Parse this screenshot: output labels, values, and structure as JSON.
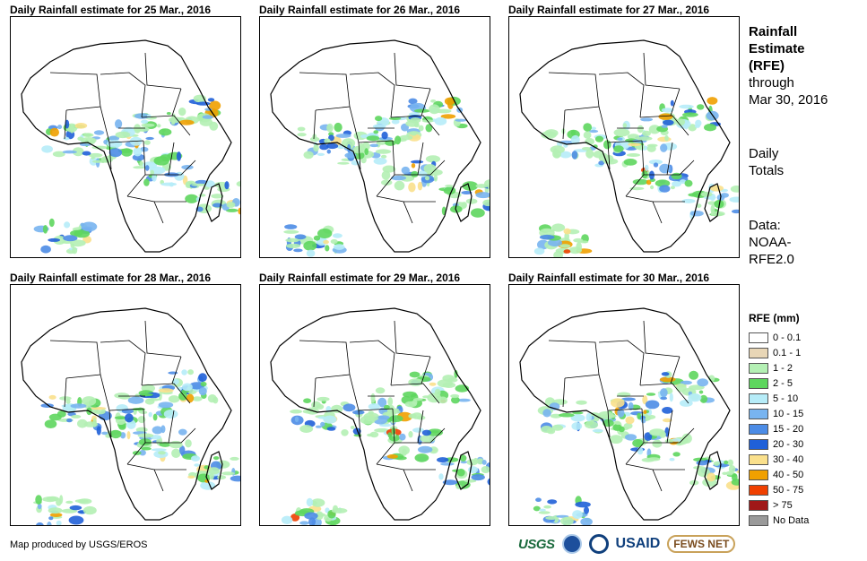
{
  "panels": [
    {
      "title": "Daily Rainfall estimate for 25 Mar., 2016"
    },
    {
      "title": "Daily Rainfall estimate for 26 Mar., 2016"
    },
    {
      "title": "Daily Rainfall estimate for 27 Mar., 2016"
    },
    {
      "title": "Daily Rainfall estimate for 28 Mar., 2016"
    },
    {
      "title": "Daily Rainfall estimate for 29 Mar., 2016"
    },
    {
      "title": "Daily Rainfall estimate for 30 Mar., 2016"
    }
  ],
  "side": {
    "title_line1": "Rainfall",
    "title_line2": "Estimate",
    "title_line3": "(RFE)",
    "through": "through",
    "date": "Mar 30, 2016",
    "daily1": "Daily",
    "daily2": "Totals",
    "data1": "Data:",
    "data2": "NOAA-",
    "data3": "RFE2.0"
  },
  "legend": {
    "title": "RFE (mm)",
    "items": [
      {
        "label": "0 - 0.1",
        "color": "#ffffff"
      },
      {
        "label": "0.1 - 1",
        "color": "#e8d6b6"
      },
      {
        "label": "1 - 2",
        "color": "#b4f0b4"
      },
      {
        "label": "2 - 5",
        "color": "#5ed65e"
      },
      {
        "label": "5 - 10",
        "color": "#b6ecf8"
      },
      {
        "label": "10 - 15",
        "color": "#78b4f0"
      },
      {
        "label": "15 - 20",
        "color": "#4c8ce6"
      },
      {
        "label": "20 - 30",
        "color": "#2060d8"
      },
      {
        "label": "30 - 40",
        "color": "#fae08c"
      },
      {
        "label": "40 - 50",
        "color": "#f0a000"
      },
      {
        "label": "50 - 75",
        "color": "#f04000"
      },
      {
        "label": "> 75",
        "color": "#a01818"
      },
      {
        "label": "No Data",
        "color": "#9a9a9a"
      }
    ]
  },
  "footer": {
    "credit": "Map produced by USGS/EROS",
    "logos": {
      "usgs": "USGS",
      "usaid": "USAID",
      "fews": "FEWS NET"
    }
  }
}
